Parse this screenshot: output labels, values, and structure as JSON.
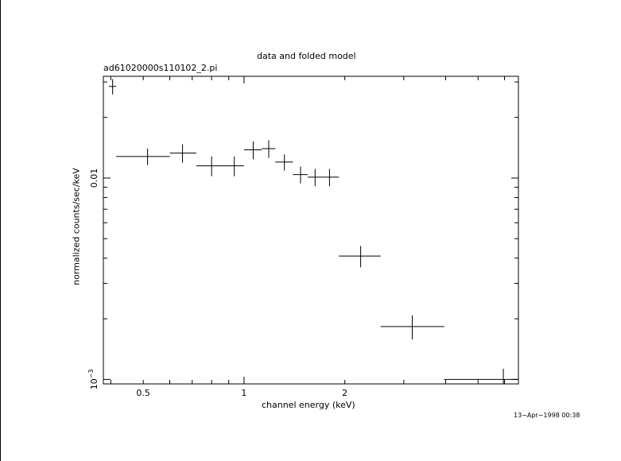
{
  "chart_data": {
    "type": "scatter",
    "title": "data and folded model",
    "subtitle": "ad61020000s110102_2.pi",
    "xlabel": "channel energy (keV)",
    "ylabel": "normalized counts/sec/keV",
    "x_scale": "log",
    "y_scale": "log",
    "xlim": [
      0.38,
      6.6
    ],
    "ylim": [
      0.00095,
      0.032
    ],
    "x_ticks": [
      {
        "value": 0.5,
        "label": "0.5"
      },
      {
        "value": 1,
        "label": "1"
      },
      {
        "value": 2,
        "label": "2"
      }
    ],
    "y_ticks": [
      {
        "value": 0.01,
        "label": "0.01"
      },
      {
        "value": 0.001,
        "label": "10",
        "exponent": "−3"
      }
    ],
    "grid": false,
    "points": [
      {
        "x": 0.405,
        "xlo": 0.395,
        "xhi": 0.415,
        "y": 0.0285,
        "yerr": 0.0025
      },
      {
        "x": 0.515,
        "xlo": 0.415,
        "xhi": 0.6,
        "y": 0.0128,
        "yerr": 0.0012
      },
      {
        "x": 0.655,
        "xlo": 0.6,
        "xhi": 0.72,
        "y": 0.0133,
        "yerr": 0.0014
      },
      {
        "x": 0.8,
        "xlo": 0.72,
        "xhi": 0.87,
        "y": 0.0115,
        "yerr": 0.0013
      },
      {
        "x": 0.935,
        "xlo": 0.87,
        "xhi": 1.0,
        "y": 0.0115,
        "yerr": 0.0013
      },
      {
        "x": 1.065,
        "xlo": 1.0,
        "xhi": 1.13,
        "y": 0.0138,
        "yerr": 0.0014
      },
      {
        "x": 1.185,
        "xlo": 1.13,
        "xhi": 1.24,
        "y": 0.014,
        "yerr": 0.0014
      },
      {
        "x": 1.32,
        "xlo": 1.24,
        "xhi": 1.4,
        "y": 0.012,
        "yerr": 0.0011
      },
      {
        "x": 1.475,
        "xlo": 1.4,
        "xhi": 1.55,
        "y": 0.0104,
        "yerr": 0.001
      },
      {
        "x": 1.63,
        "xlo": 1.55,
        "xhi": 1.7,
        "y": 0.0101,
        "yerr": 0.001
      },
      {
        "x": 1.8,
        "xlo": 1.7,
        "xhi": 1.92,
        "y": 0.0101,
        "yerr": 0.001
      },
      {
        "x": 2.23,
        "xlo": 1.92,
        "xhi": 2.56,
        "y": 0.0041,
        "yerr": 0.0005
      },
      {
        "x": 3.18,
        "xlo": 2.56,
        "xhi": 3.96,
        "y": 0.00183,
        "yerr": 0.00025
      },
      {
        "x": 5.95,
        "xlo": 3.96,
        "xhi": 6.6,
        "y": 0.001,
        "yerr": 0.00013
      }
    ]
  },
  "footer": {
    "timestamp": "13−Apr−1998 00:38"
  }
}
